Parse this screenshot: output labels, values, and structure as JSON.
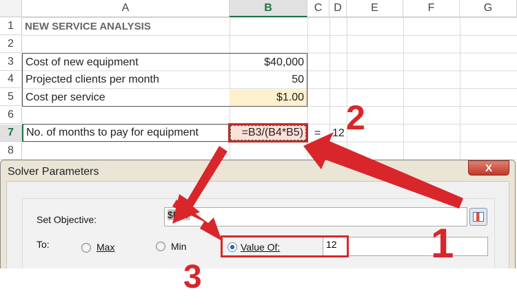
{
  "sheet": {
    "columns": [
      "A",
      "B",
      "C",
      "D",
      "E",
      "F",
      "G"
    ],
    "selected_column": "B",
    "rows": [
      "1",
      "2",
      "3",
      "4",
      "5",
      "6",
      "7",
      "8"
    ],
    "selected_row": "7",
    "cells": {
      "A1": "NEW SERVICE ANALYSIS",
      "A3": "Cost of new equipment",
      "B3": "$40,000",
      "A4": "Projected clients per month",
      "B4": "50",
      "A5": "Cost per service",
      "B5": "$1.00",
      "A7": "No. of months to pay for equipment",
      "B7": "=B3/(B4*B5)",
      "C7": "=",
      "D7": "12"
    },
    "colors": {
      "input_cell": "#fdf0cc",
      "formula_cell": "#fde0d8",
      "selection": "#217346"
    }
  },
  "dialog": {
    "title": "Solver Parameters",
    "close_label": "X",
    "set_objective_label": "Set Objective:",
    "set_objective_value": "$B$7",
    "to_label": "To:",
    "options": [
      "Max",
      "Min",
      "Value Of:"
    ],
    "selected_option": "Value Of:",
    "value_of": "12"
  },
  "annotations": {
    "labels": [
      "1",
      "2",
      "3"
    ],
    "color": "#d9262a"
  }
}
